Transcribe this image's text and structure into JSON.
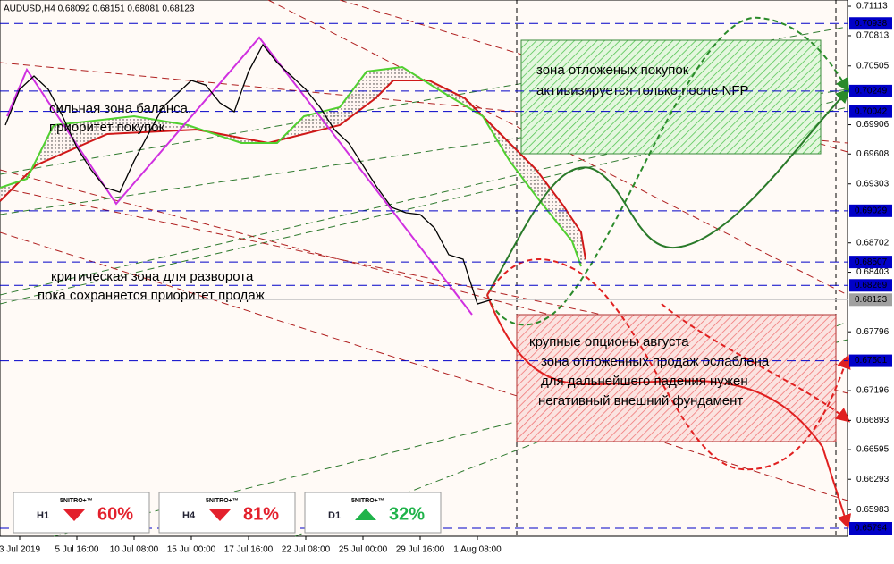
{
  "chart_data": {
    "type": "line",
    "title": "AUDUSD,H4  0.68092 0.68151 0.68081 0.68123",
    "categories": [
      null,
      "3 Jul 2019",
      null,
      null,
      null,
      "5 Jul 16:00",
      null,
      null,
      null,
      "10 Jul 08:00",
      null,
      null,
      null,
      "15 Jul 00:00",
      null,
      null,
      null,
      "17 Jul 16:00",
      null,
      null,
      null,
      "22 Jul 08:00",
      null,
      null,
      null,
      "25 Jul 00:00",
      null,
      null,
      null,
      "29 Jul 16:00",
      null,
      null,
      null,
      "1 Aug 08:00",
      null,
      null,
      null,
      null,
      null,
      null,
      null,
      null,
      null,
      null,
      null,
      null,
      null,
      null,
      null,
      null,
      null,
      null,
      null,
      null,
      null,
      null,
      null,
      null,
      null
    ],
    "series": [
      {
        "color": "#000000",
        "values": [
          0.69902,
          0.70266,
          0.70403,
          0.70266,
          0.69993,
          0.69674,
          0.69446,
          0.69264,
          0.69218,
          0.69537,
          0.69811,
          0.70084,
          0.7022,
          0.70357,
          0.70311,
          0.70129,
          0.70038,
          0.70448,
          0.70721,
          0.70539,
          0.70403,
          0.70266,
          0.70084,
          0.69856,
          0.69719,
          0.69492,
          0.69264,
          0.69064,
          0.69009,
          0.68991,
          0.68854,
          0.68581,
          0.68535,
          0.6808,
          0.68123,
          null,
          null,
          null,
          null,
          null,
          null,
          null,
          null,
          null,
          null,
          null,
          null,
          null,
          null,
          null,
          null,
          null,
          null,
          null,
          null,
          null,
          null,
          null,
          null
        ]
      }
    ],
    "ylim": [
      0.65712,
      0.71177
    ],
    "yticks": [
      0.71113,
      0.70813,
      0.70505,
      0.69906,
      0.69608,
      0.69303,
      0.68702,
      0.68403,
      0.67796,
      0.67196,
      0.66893,
      0.66595,
      0.66293,
      0.65983
    ],
    "levels": [
      0.70938,
      0.70249,
      0.70042,
      0.69029,
      0.68507,
      0.68269,
      0.67501,
      0.65794
    ],
    "level_color": "#0000c8",
    "current_price": 0.68123,
    "annotations": [
      [
        "сильная зона баланса,",
        "приоритет покупок"
      ],
      [
        "критическая зона для разворота",
        "пока сохраняется приоритет продаж"
      ],
      [
        "зона отложеных покупок",
        "активизируется только после NFP"
      ],
      [
        "крупные опционы августа",
        "зона отложенных продаж ослаблена",
        "для дальнейшего падения нужен",
        "негативный внешний фундамент"
      ]
    ],
    "widgets": [
      {
        "brand": "5NITRO+™",
        "timeframe": "H1",
        "signal": "60%",
        "direction": "down",
        "color": "#e3202c"
      },
      {
        "brand": "5NITRO+™",
        "timeframe": "H4",
        "signal": "81%",
        "direction": "down",
        "color": "#e3202c"
      },
      {
        "brand": "5NITRO+™",
        "timeframe": "D1",
        "signal": "32%",
        "direction": "up",
        "color": "#1fb34a"
      }
    ]
  }
}
